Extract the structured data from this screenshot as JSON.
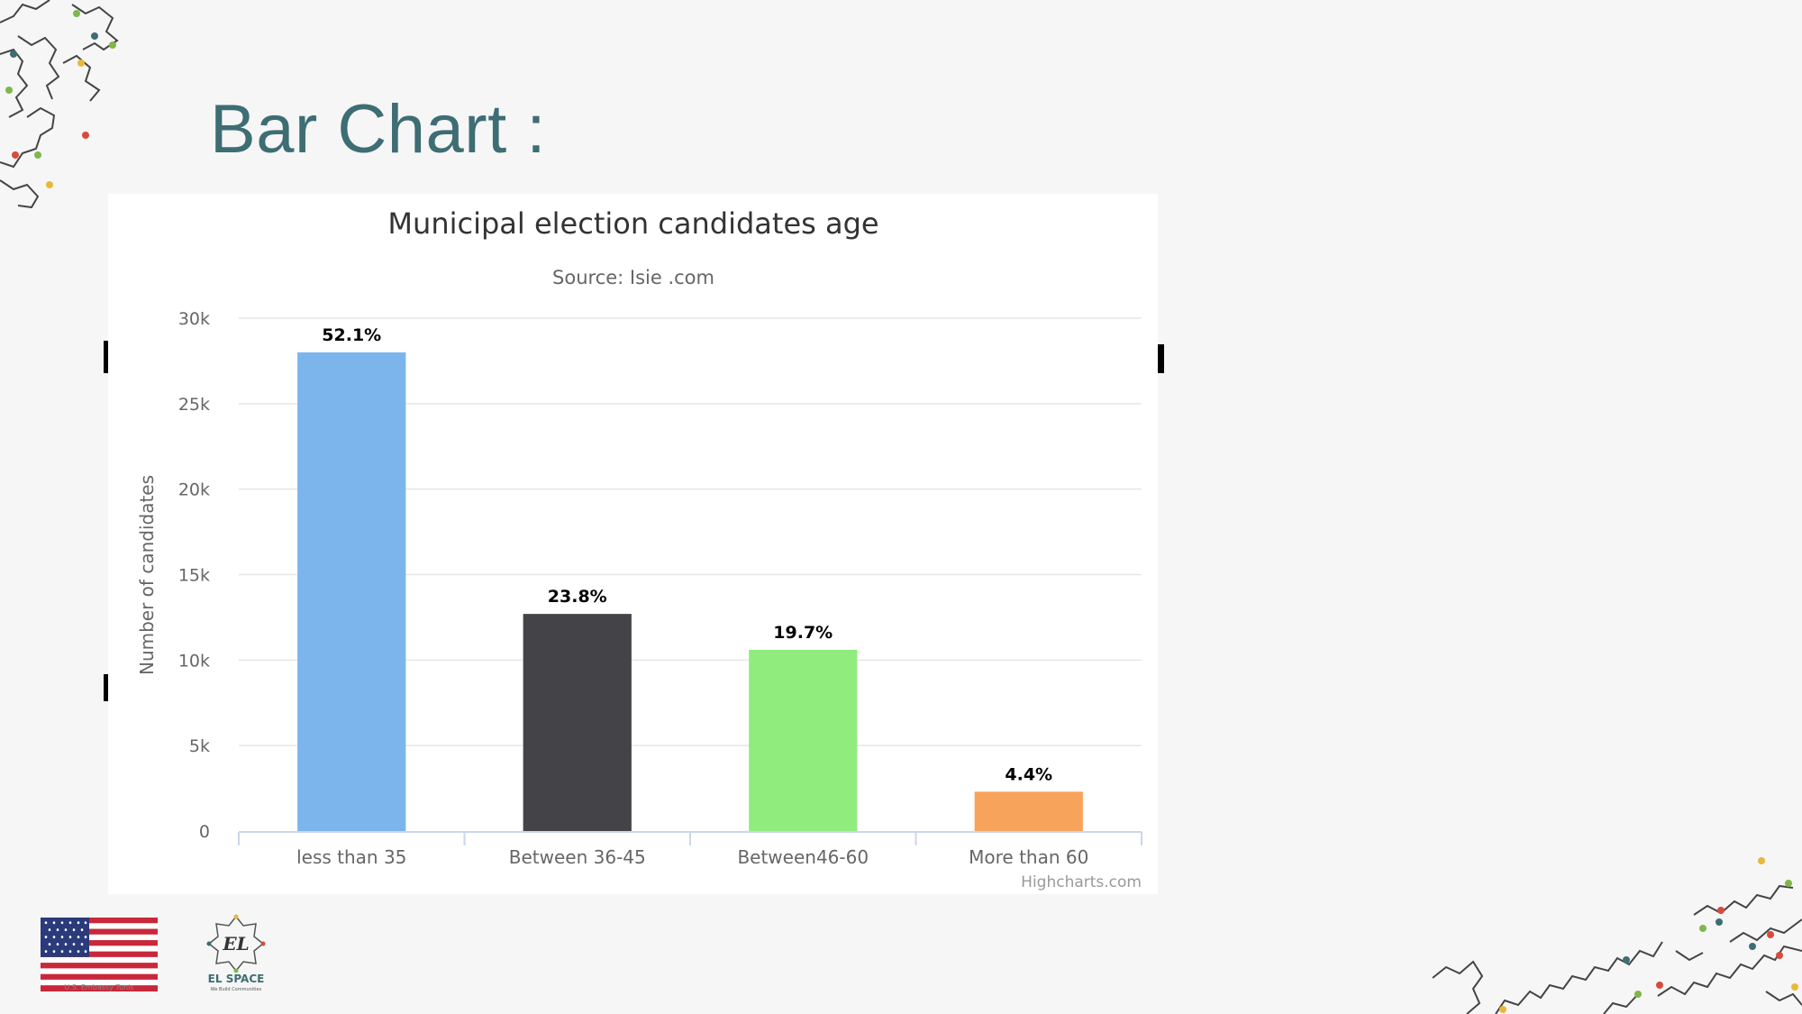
{
  "slide": {
    "title": "Bar Chart :",
    "accent_color": "#3e6d74"
  },
  "chart_data": {
    "type": "bar",
    "title": "Municipal election candidates age",
    "subtitle": "Source: Isie .com",
    "xlabel": "",
    "ylabel": "Number of candidates",
    "categories": [
      "less than 35",
      "Between 36-45",
      "Between46-60",
      "More than 60"
    ],
    "values": [
      28000,
      12700,
      10600,
      2300
    ],
    "data_labels": [
      "52.1%",
      "23.8%",
      "19.7%",
      "4.4%"
    ],
    "colors": [
      "#7cb5ec",
      "#434348",
      "#90ed7d",
      "#f7a35c"
    ],
    "ylim": [
      0,
      30000
    ],
    "yticks": [
      0,
      5000,
      10000,
      15000,
      20000,
      25000,
      30000
    ],
    "ytick_labels": [
      "0",
      "5k",
      "10k",
      "15k",
      "20k",
      "25k",
      "30k"
    ],
    "grid": true,
    "credits": "Highcharts.com"
  },
  "footer": {
    "embassy_caption": "U.S. Embassy Tunis",
    "el_logo_mark": "EL",
    "el_name": "EL SPACE",
    "el_tagline": "We Build Communities"
  }
}
